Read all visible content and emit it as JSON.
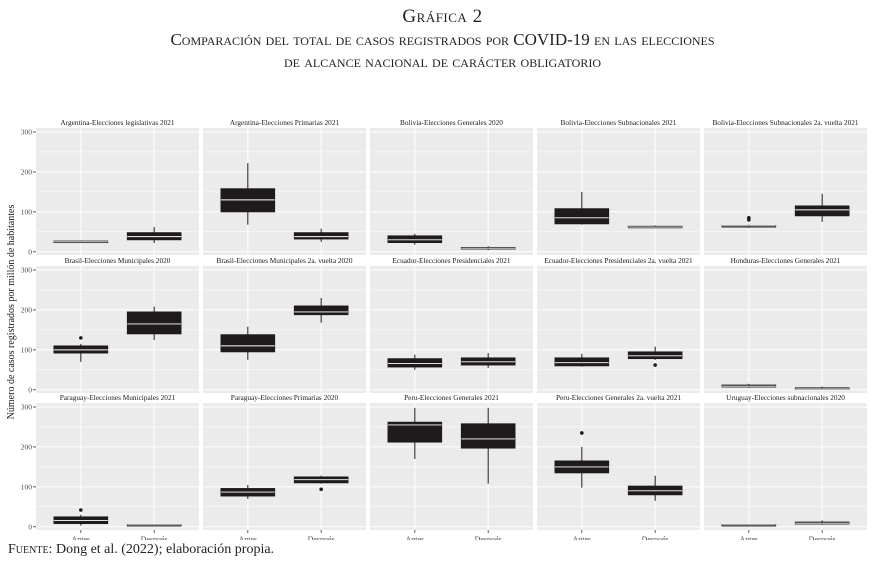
{
  "title": {
    "line1": "Gráfica 2",
    "line2": "Comparación del total de casos registrados por COVID-19 en las elecciones",
    "line3": "de alcance nacional de carácter obligatorio"
  },
  "source": {
    "lead": "Fuente:",
    "text": " Dong et al. (2022); elaboración propia."
  },
  "chart_data": {
    "type": "boxplot",
    "ylabel": "Número de casos registrados por millón de habitantes",
    "ylim": [
      -8,
      310
    ],
    "yticks": [
      0,
      100,
      200,
      300
    ],
    "categories": [
      "Antes",
      "Después"
    ],
    "grid": true,
    "colors": {
      "panel_bg": "#ebebeb",
      "grid": "#ffffff",
      "box": "#1f1a1b",
      "median": "#ffffff",
      "strip_text": "#1a1a1a",
      "axis_text": "#4d4d4d"
    },
    "panels": [
      {
        "title": "Argentina-Elecciones legislativas 2021",
        "boxes": [
          {
            "min": 24,
            "q1": 24,
            "median": 25,
            "q3": 27,
            "max": 28,
            "outliers": []
          },
          {
            "min": 22,
            "q1": 30,
            "median": 38,
            "q3": 48,
            "max": 62,
            "outliers": []
          }
        ]
      },
      {
        "title": "Argentina-Elecciones Primarias 2021",
        "boxes": [
          {
            "min": 68,
            "q1": 100,
            "median": 130,
            "q3": 158,
            "max": 222,
            "outliers": []
          },
          {
            "min": 25,
            "q1": 32,
            "median": 38,
            "q3": 48,
            "max": 58,
            "outliers": []
          }
        ]
      },
      {
        "title": "Bolivia-Elecciones Generales 2020",
        "boxes": [
          {
            "min": 18,
            "q1": 23,
            "median": 30,
            "q3": 40,
            "max": 45,
            "outliers": []
          },
          {
            "min": 4,
            "q1": 7,
            "median": 9,
            "q3": 11,
            "max": 14,
            "outliers": []
          }
        ]
      },
      {
        "title": "Bolivia-Elecciones Subnacionales 2021",
        "boxes": [
          {
            "min": 68,
            "q1": 70,
            "median": 85,
            "q3": 108,
            "max": 150,
            "outliers": []
          },
          {
            "min": 60,
            "q1": 61,
            "median": 62,
            "q3": 64,
            "max": 66,
            "outliers": []
          }
        ]
      },
      {
        "title": "Bolivia-Elecciones Subnacionales 2a. vuelta 2021",
        "boxes": [
          {
            "min": 60,
            "q1": 63,
            "median": 65,
            "q3": 66,
            "max": 68,
            "outliers": [
              80,
              85
            ]
          },
          {
            "min": 75,
            "q1": 90,
            "median": 105,
            "q3": 115,
            "max": 145,
            "outliers": []
          }
        ]
      },
      {
        "title": "Brasil-Elecciones Municipales 2020",
        "boxes": [
          {
            "min": 70,
            "q1": 92,
            "median": 100,
            "q3": 110,
            "max": 115,
            "outliers": [
              130
            ]
          },
          {
            "min": 125,
            "q1": 140,
            "median": 165,
            "q3": 195,
            "max": 208,
            "outliers": []
          }
        ]
      },
      {
        "title": "Brasil-Elecciones Municipales 2a. vuelta 2020",
        "boxes": [
          {
            "min": 75,
            "q1": 95,
            "median": 110,
            "q3": 138,
            "max": 158,
            "outliers": []
          },
          {
            "min": 168,
            "q1": 188,
            "median": 195,
            "q3": 210,
            "max": 230,
            "outliers": []
          }
        ]
      },
      {
        "title": "Ecuador-Elecciones Presidenciales 2021",
        "boxes": [
          {
            "min": 50,
            "q1": 57,
            "median": 66,
            "q3": 78,
            "max": 88,
            "outliers": []
          },
          {
            "min": 55,
            "q1": 62,
            "median": 70,
            "q3": 80,
            "max": 92,
            "outliers": []
          }
        ]
      },
      {
        "title": "Ecuador-Elecciones Presidenciales 2a. vuelta 2021",
        "boxes": [
          {
            "min": 58,
            "q1": 60,
            "median": 68,
            "q3": 80,
            "max": 90,
            "outliers": []
          },
          {
            "min": 75,
            "q1": 78,
            "median": 85,
            "q3": 95,
            "max": 108,
            "outliers": [
              62
            ]
          }
        ]
      },
      {
        "title": "Honduras-Elecciones Generales 2021",
        "boxes": [
          {
            "min": 5,
            "q1": 7,
            "median": 9,
            "q3": 12,
            "max": 15,
            "outliers": []
          },
          {
            "min": 0,
            "q1": 1,
            "median": 2,
            "q3": 5,
            "max": 8,
            "outliers": []
          }
        ]
      },
      {
        "title": "Paraguay-Elecciones Municipales 2021",
        "boxes": [
          {
            "min": 3,
            "q1": 8,
            "median": 16,
            "q3": 25,
            "max": 30,
            "outliers": [
              42
            ]
          },
          {
            "min": 3,
            "q1": 4,
            "median": 5,
            "q3": 6,
            "max": 7,
            "outliers": []
          }
        ]
      },
      {
        "title": "Paraguay-Elecciones Primarias 2020",
        "boxes": [
          {
            "min": 70,
            "q1": 77,
            "median": 87,
            "q3": 96,
            "max": 105,
            "outliers": []
          },
          {
            "min": 108,
            "q1": 110,
            "median": 118,
            "q3": 125,
            "max": 128,
            "outliers": [
              94
            ]
          }
        ]
      },
      {
        "title": "Peru-Elecciones Generales 2021",
        "boxes": [
          {
            "min": 170,
            "q1": 212,
            "median": 255,
            "q3": 262,
            "max": 298,
            "outliers": []
          },
          {
            "min": 108,
            "q1": 197,
            "median": 220,
            "q3": 258,
            "max": 298,
            "outliers": []
          }
        ]
      },
      {
        "title": "Peru-Elecciones Generales 2a. vuelta 2021",
        "boxes": [
          {
            "min": 98,
            "q1": 135,
            "median": 150,
            "q3": 165,
            "max": 200,
            "outliers": [
              235
            ]
          },
          {
            "min": 65,
            "q1": 80,
            "median": 90,
            "q3": 102,
            "max": 128,
            "outliers": []
          }
        ]
      },
      {
        "title": "Uruguay-Elecciones subnacionales 2020",
        "boxes": [
          {
            "min": 3,
            "q1": 4,
            "median": 5,
            "q3": 6,
            "max": 7,
            "outliers": []
          },
          {
            "min": 5,
            "q1": 7,
            "median": 9,
            "q3": 12,
            "max": 16,
            "outliers": []
          }
        ]
      }
    ]
  }
}
